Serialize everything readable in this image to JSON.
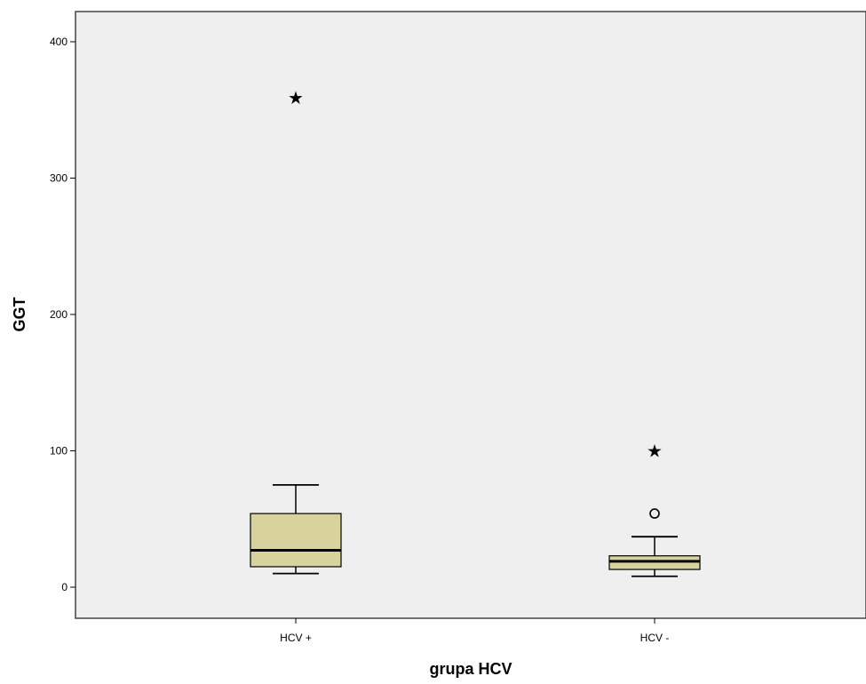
{
  "chart_data": {
    "type": "box",
    "title": "",
    "xlabel": "grupa HCV",
    "ylabel": "GGT",
    "ylim": [
      -22,
      431
    ],
    "y_ticks": [
      0,
      100,
      200,
      300,
      400
    ],
    "grid": false,
    "box_fill": "#d8d29c",
    "plot_bg": "#efefef",
    "categories": [
      "HCV +",
      "HCV -"
    ],
    "boxes": [
      {
        "category": "HCV +",
        "whisker_low": 10,
        "q1": 15,
        "median": 27,
        "q3": 54,
        "whisker_high": 75,
        "outliers": [],
        "extremes": [
          359
        ]
      },
      {
        "category": "HCV -",
        "whisker_low": 8,
        "q1": 13,
        "median": 19,
        "q3": 23,
        "whisker_high": 37,
        "outliers": [
          54
        ],
        "extremes": [
          100
        ]
      }
    ],
    "extreme_symbol": "★"
  }
}
